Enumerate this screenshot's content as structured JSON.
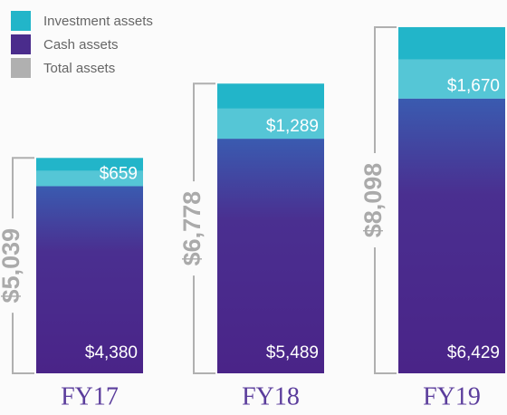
{
  "chart_data": {
    "type": "stacked-bar",
    "categories": [
      "FY17",
      "FY18",
      "FY19"
    ],
    "series": [
      {
        "name": "Investment assets",
        "color": "#22b5c9",
        "values": [
          659,
          1289,
          1670
        ],
        "value_labels": [
          "$659",
          "$1,289",
          "$1,670"
        ]
      },
      {
        "name": "Cash assets",
        "color": "#4a2c8c",
        "values": [
          4380,
          5489,
          6429
        ],
        "value_labels": [
          "$4,380",
          "$5,489",
          "$6,429"
        ]
      },
      {
        "name": "Total assets",
        "color": "#b0b0b0",
        "values": [
          5039,
          6778,
          8098
        ],
        "value_labels": [
          "$5,039",
          "$6,778",
          "$8,098"
        ]
      }
    ]
  }
}
